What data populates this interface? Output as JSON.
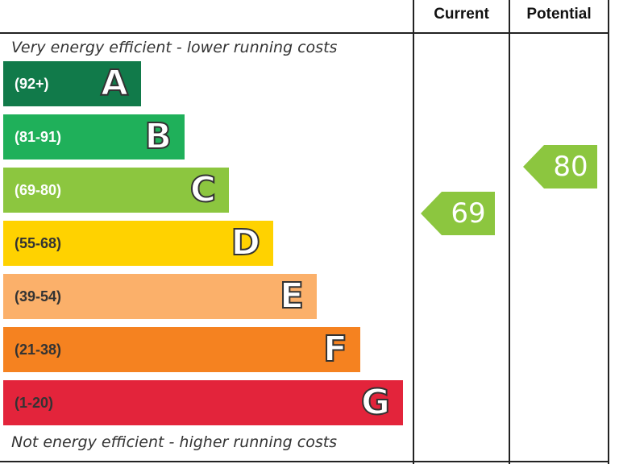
{
  "header": {
    "current_label": "Current",
    "potential_label": "Potential"
  },
  "captions": {
    "top": "Very energy efficient - lower running costs",
    "bottom": "Not energy efficient - higher running costs"
  },
  "chart_data": {
    "type": "bar",
    "bands": [
      {
        "letter": "A",
        "range": "(92+)",
        "color": "#117a4a",
        "text_color": "#ffffff"
      },
      {
        "letter": "B",
        "range": "(81-91)",
        "color": "#1fb05a",
        "text_color": "#ffffff"
      },
      {
        "letter": "C",
        "range": "(69-80)",
        "color": "#8cc63f",
        "text_color": "#ffffff"
      },
      {
        "letter": "D",
        "range": "(55-68)",
        "color": "#ffd200",
        "text_color": "#333333"
      },
      {
        "letter": "E",
        "range": "(39-54)",
        "color": "#fbb06a",
        "text_color": "#333333"
      },
      {
        "letter": "F",
        "range": "(21-38)",
        "color": "#f58220",
        "text_color": "#333333"
      },
      {
        "letter": "G",
        "range": "(1-20)",
        "color": "#e3243b",
        "text_color": "#333333"
      }
    ],
    "current": {
      "value": "69",
      "band": "C",
      "color": "#8cc63f"
    },
    "potential": {
      "value": "80",
      "band": "C",
      "color": "#8cc63f"
    }
  }
}
